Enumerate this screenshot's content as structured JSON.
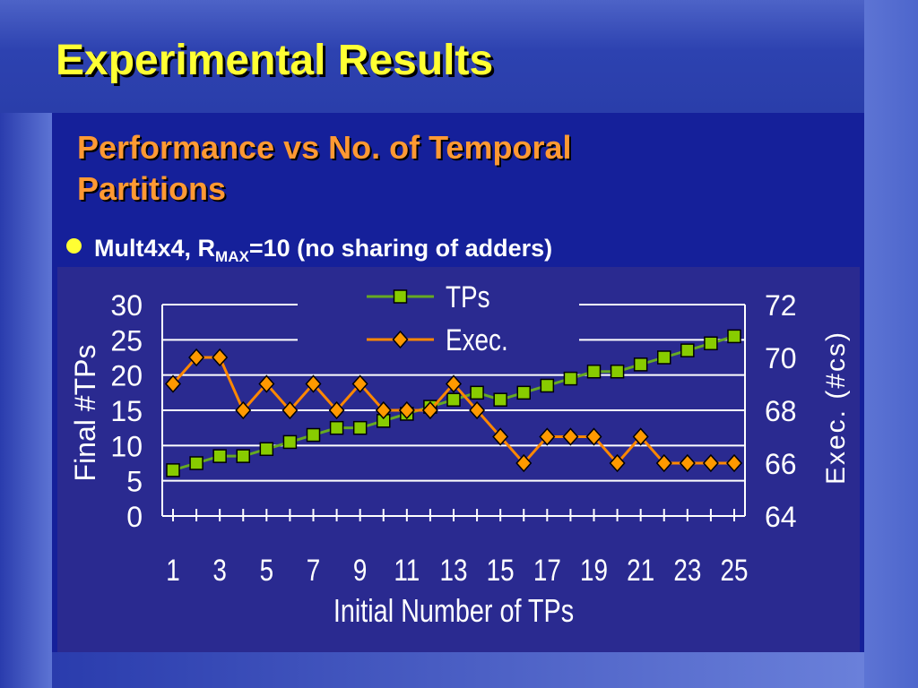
{
  "slide": {
    "title": "Experimental Results",
    "subtitle": "Performance vs No. of Temporal Partitions",
    "bullet": {
      "text_before": "Mult4x4, R",
      "subscript": "MAX",
      "text_after": "=10 (no sharing of adders)"
    }
  },
  "colors": {
    "title": "#ffff33",
    "subtitle": "#ff9933",
    "tps_marker": "#88cc00",
    "tps_line": "#66aa22",
    "exec_marker": "#ff9900",
    "exec_line": "#ff8800",
    "grid": "#ffffff"
  },
  "chart_data": {
    "type": "line",
    "title": "",
    "xlabel": "Initial Number of TPs",
    "ylabel": "Final #TPs",
    "y2label": "Exec. (#cs)",
    "x": [
      1,
      2,
      3,
      4,
      5,
      6,
      7,
      8,
      9,
      10,
      11,
      12,
      13,
      14,
      15,
      16,
      17,
      18,
      19,
      20,
      21,
      22,
      23,
      24,
      25
    ],
    "xtick_labels": [
      "1",
      "3",
      "5",
      "7",
      "9",
      "11",
      "13",
      "15",
      "17",
      "19",
      "21",
      "23",
      "25"
    ],
    "ylim": [
      0,
      30
    ],
    "yticks": [
      "0",
      "5",
      "10",
      "15",
      "20",
      "25",
      "30"
    ],
    "y2lim": [
      64,
      72
    ],
    "y2ticks": [
      "64",
      "66",
      "68",
      "70",
      "72"
    ],
    "grid": true,
    "legend_position": "top-center",
    "series": [
      {
        "name": "TPs",
        "axis": "left",
        "marker": "square",
        "values": [
          6.5,
          7.5,
          8.5,
          8.5,
          9.5,
          10.5,
          11.5,
          12.5,
          12.5,
          13.5,
          14.5,
          15.5,
          16.5,
          17.5,
          16.5,
          17.5,
          18.5,
          19.5,
          20.5,
          20.5,
          21.5,
          22.5,
          23.5,
          24.5,
          25.5
        ]
      },
      {
        "name": "Exec.",
        "axis": "right",
        "marker": "diamond",
        "values": [
          69,
          70,
          70,
          68,
          69,
          68,
          69,
          68,
          69,
          68,
          68,
          68,
          69,
          68,
          67,
          66,
          67,
          67,
          67,
          66,
          67,
          66,
          66,
          66,
          66
        ]
      }
    ]
  }
}
